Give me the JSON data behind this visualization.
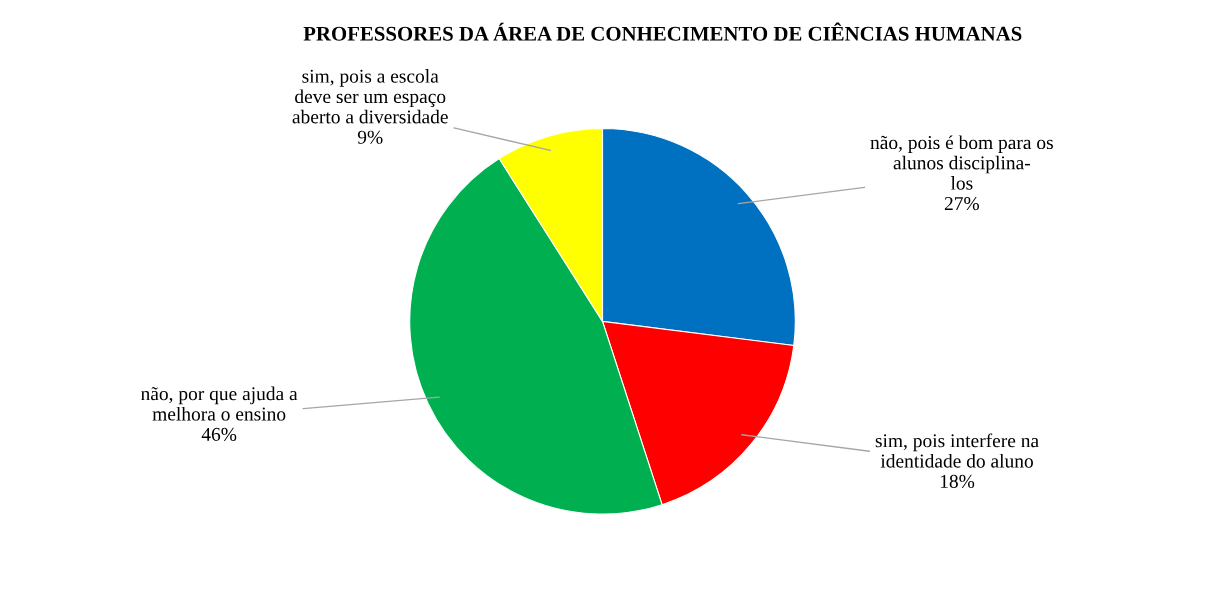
{
  "chart_data": {
    "type": "pie",
    "title": "PROFESSORES DA ÁREA DE CONHECIMENTO DE CIÊNCIAS HUMANAS",
    "categories": [
      "não, pois é bom para os\nalunos disciplina-\nlos",
      "sim, pois interfere na\nidentidade do aluno",
      "não, por que ajuda a\nmelhora o ensino",
      "sim, pois a escola\ndeve ser um espaço\naberto a diversidade"
    ],
    "values": [
      27,
      18,
      46,
      9
    ],
    "value_labels": [
      "27%",
      "18%",
      "46%",
      "9%"
    ],
    "colors": [
      "#0070c0",
      "#ff0000",
      "#00b050",
      "#ffff00"
    ]
  }
}
